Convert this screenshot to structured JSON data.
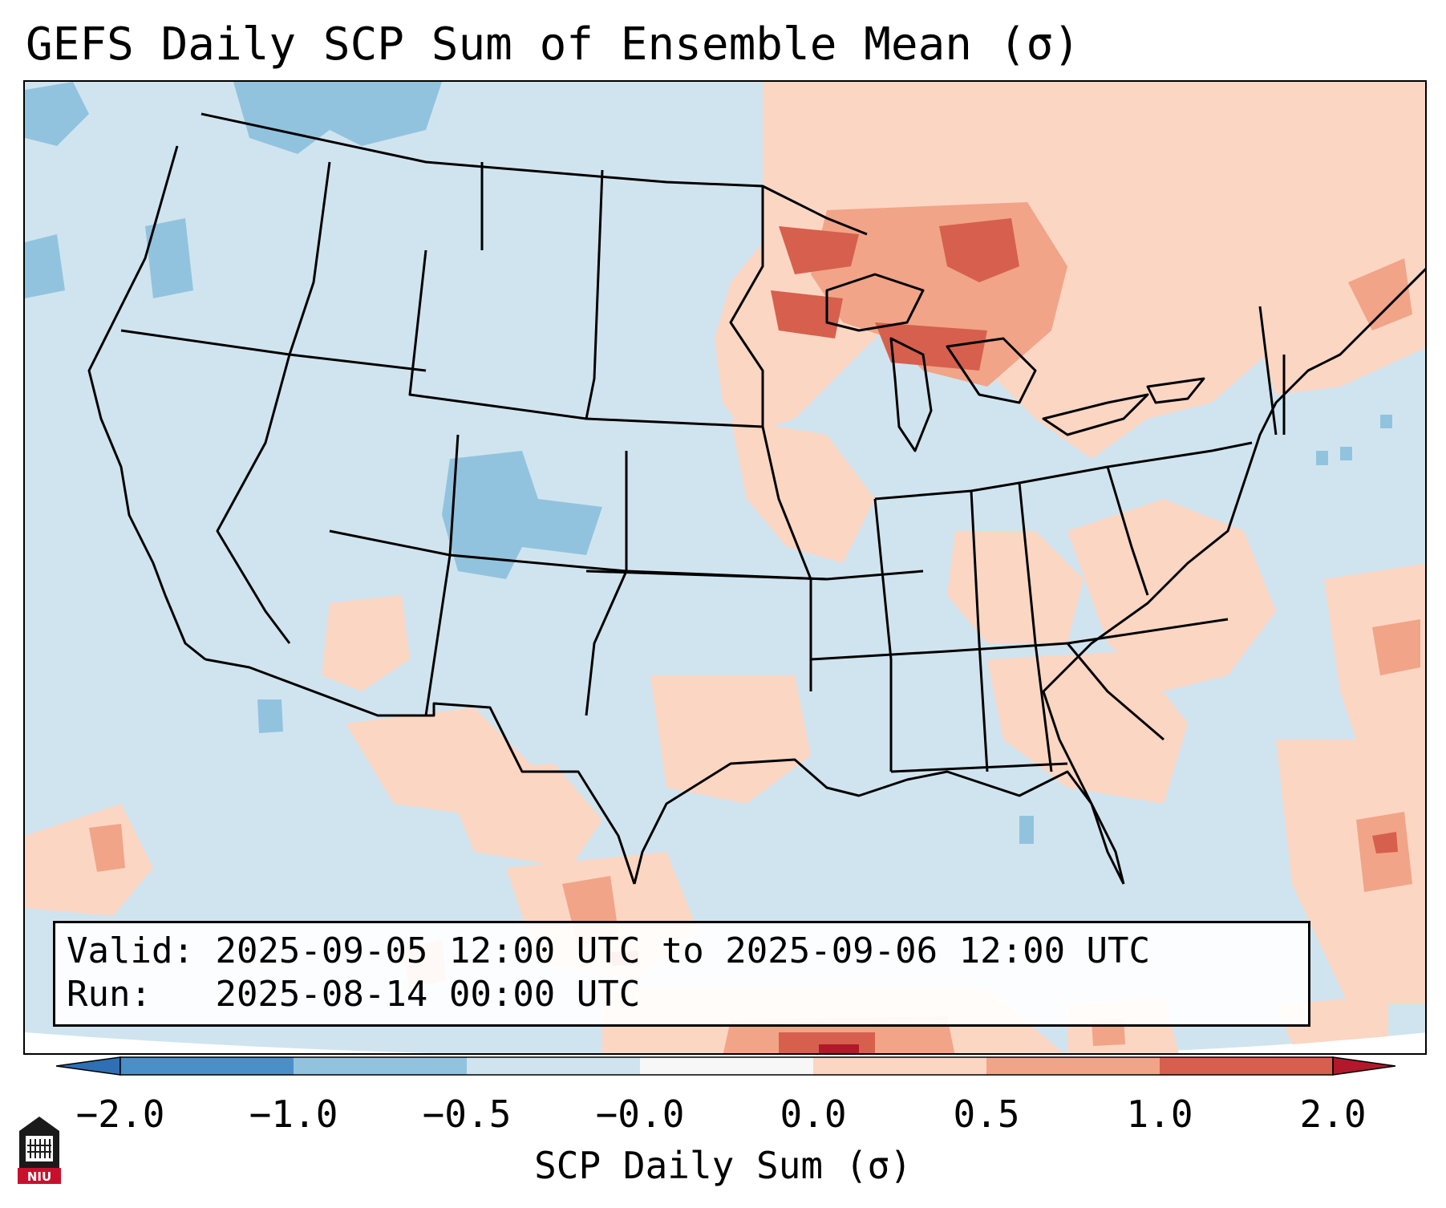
{
  "title": "GEFS Daily SCP Sum of Ensemble Mean (σ)",
  "info": {
    "valid_label": "Valid:",
    "valid_value": "2025-09-05 12:00 UTC to 2025-09-06 12:00 UTC",
    "run_label": "Run:",
    "run_value": "2025-08-14 00:00 UTC"
  },
  "colorbar": {
    "label": "SCP Daily Sum (σ)",
    "ticks": [
      "−2.0",
      "−1.0",
      "−0.5",
      "−0.0",
      "0.0",
      "0.5",
      "1.0",
      "2.0"
    ],
    "colors": {
      "under": "#2f6fb4",
      "bin_-2_-1": "#4a8fc7",
      "bin_-1_-0.5": "#92c3de",
      "bin_-0.5_0": "#d0e4ef",
      "bin_0_0": "#f7f7f7",
      "bin_0_0.5": "#fbd6c3",
      "bin_0.5_1": "#f1a488",
      "bin_1_2": "#d6604d",
      "over": "#b2182b"
    }
  },
  "logo": {
    "text": "NIU"
  },
  "map_colors": {
    "ocean_background": "#d0e4ef",
    "positive_light": "#fbd6c3",
    "positive_medium": "#f1a488",
    "positive_strong": "#d6604d",
    "negative_light": "#92c3de",
    "boundary_line": "#000000"
  }
}
